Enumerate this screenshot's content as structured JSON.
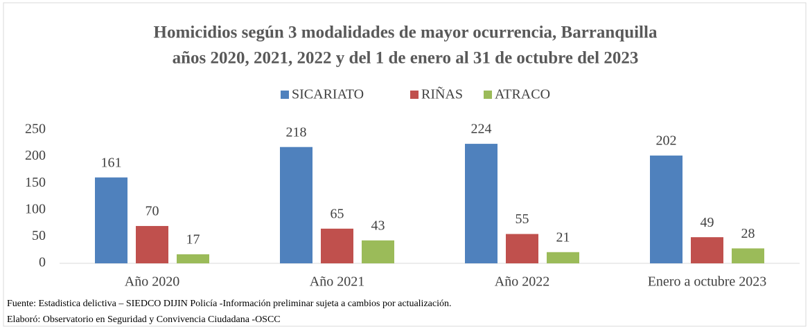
{
  "chart_data": {
    "type": "bar",
    "title": [
      "Homicidios según 3 modalidades de mayor ocurrencia, Barranquilla",
      "años 2020, 2021, 2022 y del 1 de enero al 31 de octubre del 2023"
    ],
    "categories": [
      "Año 2020",
      "Año 2021",
      "Año 2022",
      "Enero a octubre 2023"
    ],
    "series": [
      {
        "name": "SICARIATO",
        "color": "#4f81bd",
        "values": [
          161,
          218,
          224,
          202
        ]
      },
      {
        "name": "RIÑAS",
        "color": "#c0504d",
        "values": [
          70,
          65,
          55,
          49
        ]
      },
      {
        "name": "ATRACO",
        "color": "#9bbb59",
        "values": [
          17,
          43,
          21,
          28
        ]
      }
    ],
    "ylim": [
      0,
      250
    ],
    "yticks": [
      0,
      50,
      100,
      150,
      200,
      250
    ],
    "grid": false,
    "legend": "top"
  },
  "footer": [
    "Fuente: Estadistica delictiva – SIEDCO DIJIN Policía -Información preliminar sujeta a cambios por actualización.",
    "Elaboró: Observatorio en Seguridad y Convivencia Ciudadana -OSCC"
  ]
}
